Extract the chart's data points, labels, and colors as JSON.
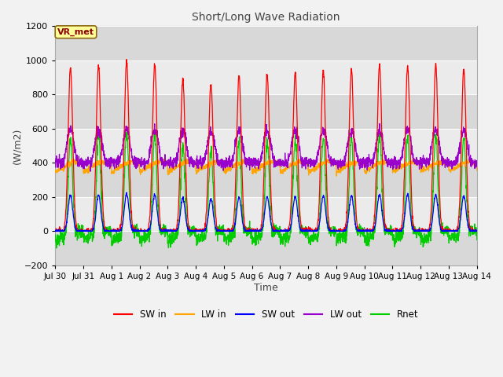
{
  "title": "Short/Long Wave Radiation",
  "xlabel": "Time",
  "ylabel": "(W/m2)",
  "ylim": [
    -200,
    1200
  ],
  "yticks": [
    -200,
    0,
    200,
    400,
    600,
    800,
    1000,
    1200
  ],
  "annotation_text": "VR_met",
  "annotation_color": "#8B0000",
  "annotation_bg": "#FFFF99",
  "fig_bg": "#F2F2F2",
  "plot_bg_light": "#EBEBEB",
  "plot_bg_dark": "#D8D8D8",
  "colors": {
    "SW_in": "#FF0000",
    "LW_in": "#FFA500",
    "SW_out": "#0000FF",
    "LW_out": "#9900CC",
    "Rnet": "#00CC00"
  },
  "legend_labels": [
    "SW in",
    "LW in",
    "SW out",
    "LW out",
    "Rnet"
  ],
  "x_tick_labels": [
    "Jul 30",
    "Jul 31",
    "Aug 1",
    "Aug 2",
    "Aug 3",
    "Aug 4",
    "Aug 5",
    "Aug 6",
    "Aug 7",
    "Aug 8",
    "Aug 9",
    "Aug 10",
    "Aug 11",
    "Aug 12",
    "Aug 13",
    "Aug 14"
  ],
  "tick_positions": [
    0,
    1,
    2,
    3,
    4,
    5,
    6,
    7,
    8,
    9,
    10,
    11,
    12,
    13,
    14,
    15
  ]
}
